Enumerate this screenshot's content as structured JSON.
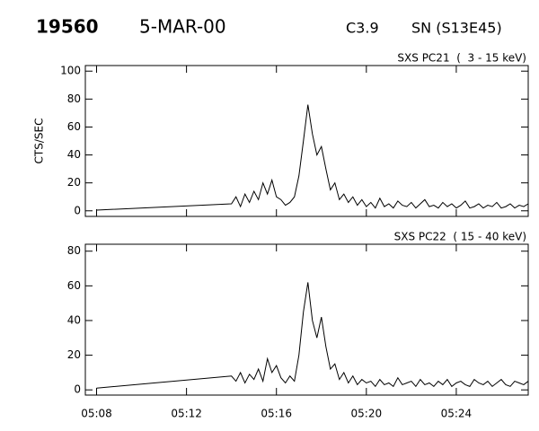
{
  "header": {
    "id": "19560",
    "date": "5-MAR-00",
    "class": "C3.9",
    "location": "SN (S13E45)"
  },
  "chart_data": [
    {
      "type": "line",
      "title": "SXS PC21  (  3 - 15 keV)",
      "y_label": "CTS/SEC",
      "color": "#000000",
      "x": [
        8,
        14,
        14.2,
        14.4,
        14.6,
        14.8,
        15,
        15.2,
        15.4,
        15.6,
        15.8,
        16,
        16.2,
        16.4,
        16.6,
        16.8,
        17,
        17.2,
        17.4,
        17.6,
        17.8,
        18,
        18.2,
        18.4,
        18.6,
        18.8,
        19,
        19.2,
        19.4,
        19.6,
        19.8,
        20,
        20.2,
        20.4,
        20.6,
        20.8,
        21,
        21.2,
        21.4,
        21.6,
        21.8,
        22,
        22.2,
        22.4,
        22.6,
        22.8,
        23,
        23.2,
        23.4,
        23.6,
        23.8,
        24,
        24.2,
        24.4,
        24.6,
        24.8,
        25,
        25.2,
        25.4,
        25.6,
        25.8,
        26,
        26.2,
        26.4,
        26.6,
        26.8,
        27,
        27.2
      ],
      "values": [
        0.5,
        5,
        10,
        3,
        12,
        6,
        14,
        8,
        20,
        12,
        22,
        10,
        8,
        4,
        6,
        10,
        25,
        50,
        76,
        55,
        40,
        46,
        30,
        15,
        20,
        8,
        12,
        6,
        10,
        4,
        8,
        3,
        6,
        2,
        9,
        3,
        5,
        2,
        7,
        4,
        3,
        6,
        2,
        5,
        8,
        3,
        4,
        2,
        6,
        3,
        5,
        2,
        4,
        7,
        2,
        3,
        5,
        2,
        4,
        3,
        6,
        2,
        3,
        5,
        2,
        4,
        3,
        5
      ],
      "xlim": [
        7.5,
        27.2
      ],
      "ylim": [
        -4,
        104
      ],
      "yticks": [
        0,
        20,
        40,
        60,
        80,
        100
      ]
    },
    {
      "type": "line",
      "title": "SXS PC22  ( 15 - 40 keV)",
      "color": "#000000",
      "x": [
        8,
        14,
        14.2,
        14.4,
        14.6,
        14.8,
        15,
        15.2,
        15.4,
        15.6,
        15.8,
        16,
        16.2,
        16.4,
        16.6,
        16.8,
        17,
        17.2,
        17.4,
        17.6,
        17.8,
        18,
        18.2,
        18.4,
        18.6,
        18.8,
        19,
        19.2,
        19.4,
        19.6,
        19.8,
        20,
        20.2,
        20.4,
        20.6,
        20.8,
        21,
        21.2,
        21.4,
        21.6,
        21.8,
        22,
        22.2,
        22.4,
        22.6,
        22.8,
        23,
        23.2,
        23.4,
        23.6,
        23.8,
        24,
        24.2,
        24.4,
        24.6,
        24.8,
        25,
        25.2,
        25.4,
        25.6,
        25.8,
        26,
        26.2,
        26.4,
        26.6,
        26.8,
        27,
        27.2
      ],
      "values": [
        1,
        8,
        5,
        10,
        4,
        9,
        6,
        12,
        5,
        18,
        10,
        14,
        7,
        4,
        8,
        5,
        20,
        45,
        62,
        40,
        30,
        42,
        25,
        12,
        15,
        6,
        10,
        4,
        8,
        3,
        6,
        4,
        5,
        2,
        6,
        3,
        4,
        2,
        7,
        3,
        4,
        5,
        2,
        6,
        3,
        4,
        2,
        5,
        3,
        6,
        2,
        4,
        5,
        3,
        2,
        6,
        4,
        3,
        5,
        2,
        4,
        6,
        3,
        2,
        5,
        4,
        3,
        5
      ],
      "xlim": [
        7.5,
        27.2
      ],
      "ylim": [
        -3,
        84
      ],
      "yticks": [
        0,
        20,
        40,
        60,
        80
      ],
      "xticks": [
        {
          "value": 8,
          "label": "05:08"
        },
        {
          "value": 12,
          "label": "05:12"
        },
        {
          "value": 16,
          "label": "05:16"
        },
        {
          "value": 20,
          "label": "05:20"
        },
        {
          "value": 24,
          "label": "05:24"
        }
      ]
    }
  ]
}
